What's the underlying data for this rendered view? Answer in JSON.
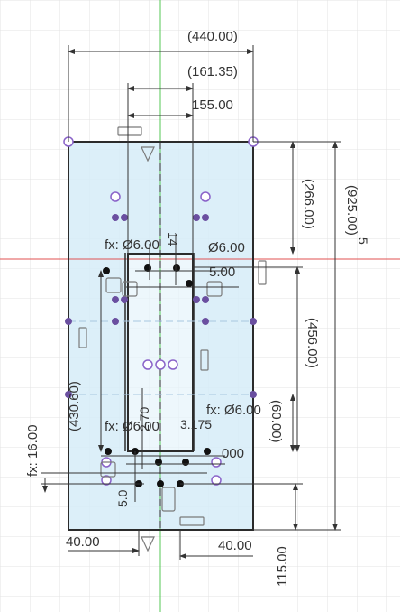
{
  "colors": {
    "background": "#ffffff",
    "grid": "#e3e3e3",
    "axis_vertical": "#54c754",
    "axis_horizontal": "#e05252",
    "profile_fill": "#d6ecf8",
    "sketch_line": "#2b2b2b",
    "constraint_point": "#8a63c9",
    "dimension_text": "#333333"
  },
  "dimensions": {
    "overall_width": "(440.00)",
    "slot_outer_width": "(161.35)",
    "slot_inner_width": "155.00",
    "top_offset": "(266.00)",
    "overall_height": "(925.00)",
    "height_tail": "5",
    "slot_height": "(456.00)",
    "left_height": "(430.60)",
    "bottom_block_height": "(60.00)",
    "fx_hole_top": "fx: Ø6.00",
    "top_hole": "Ø6.00",
    "top_vertical": "14",
    "top_right_value": "5.00",
    "fx_hole_bottom_left": "fx: Ø6.00",
    "fx_hole_bottom_right": "fx: Ø6.00",
    "bottom_small": "3.175",
    "bottom_right_value": "000",
    "center_vertical": "2.70",
    "bottom_left_vertical": "5.0",
    "fx_left": "fx: 16.00",
    "bottom_left_offset": "40.00",
    "bottom_right_offset": "40.00",
    "bottom_height": "115.00"
  }
}
